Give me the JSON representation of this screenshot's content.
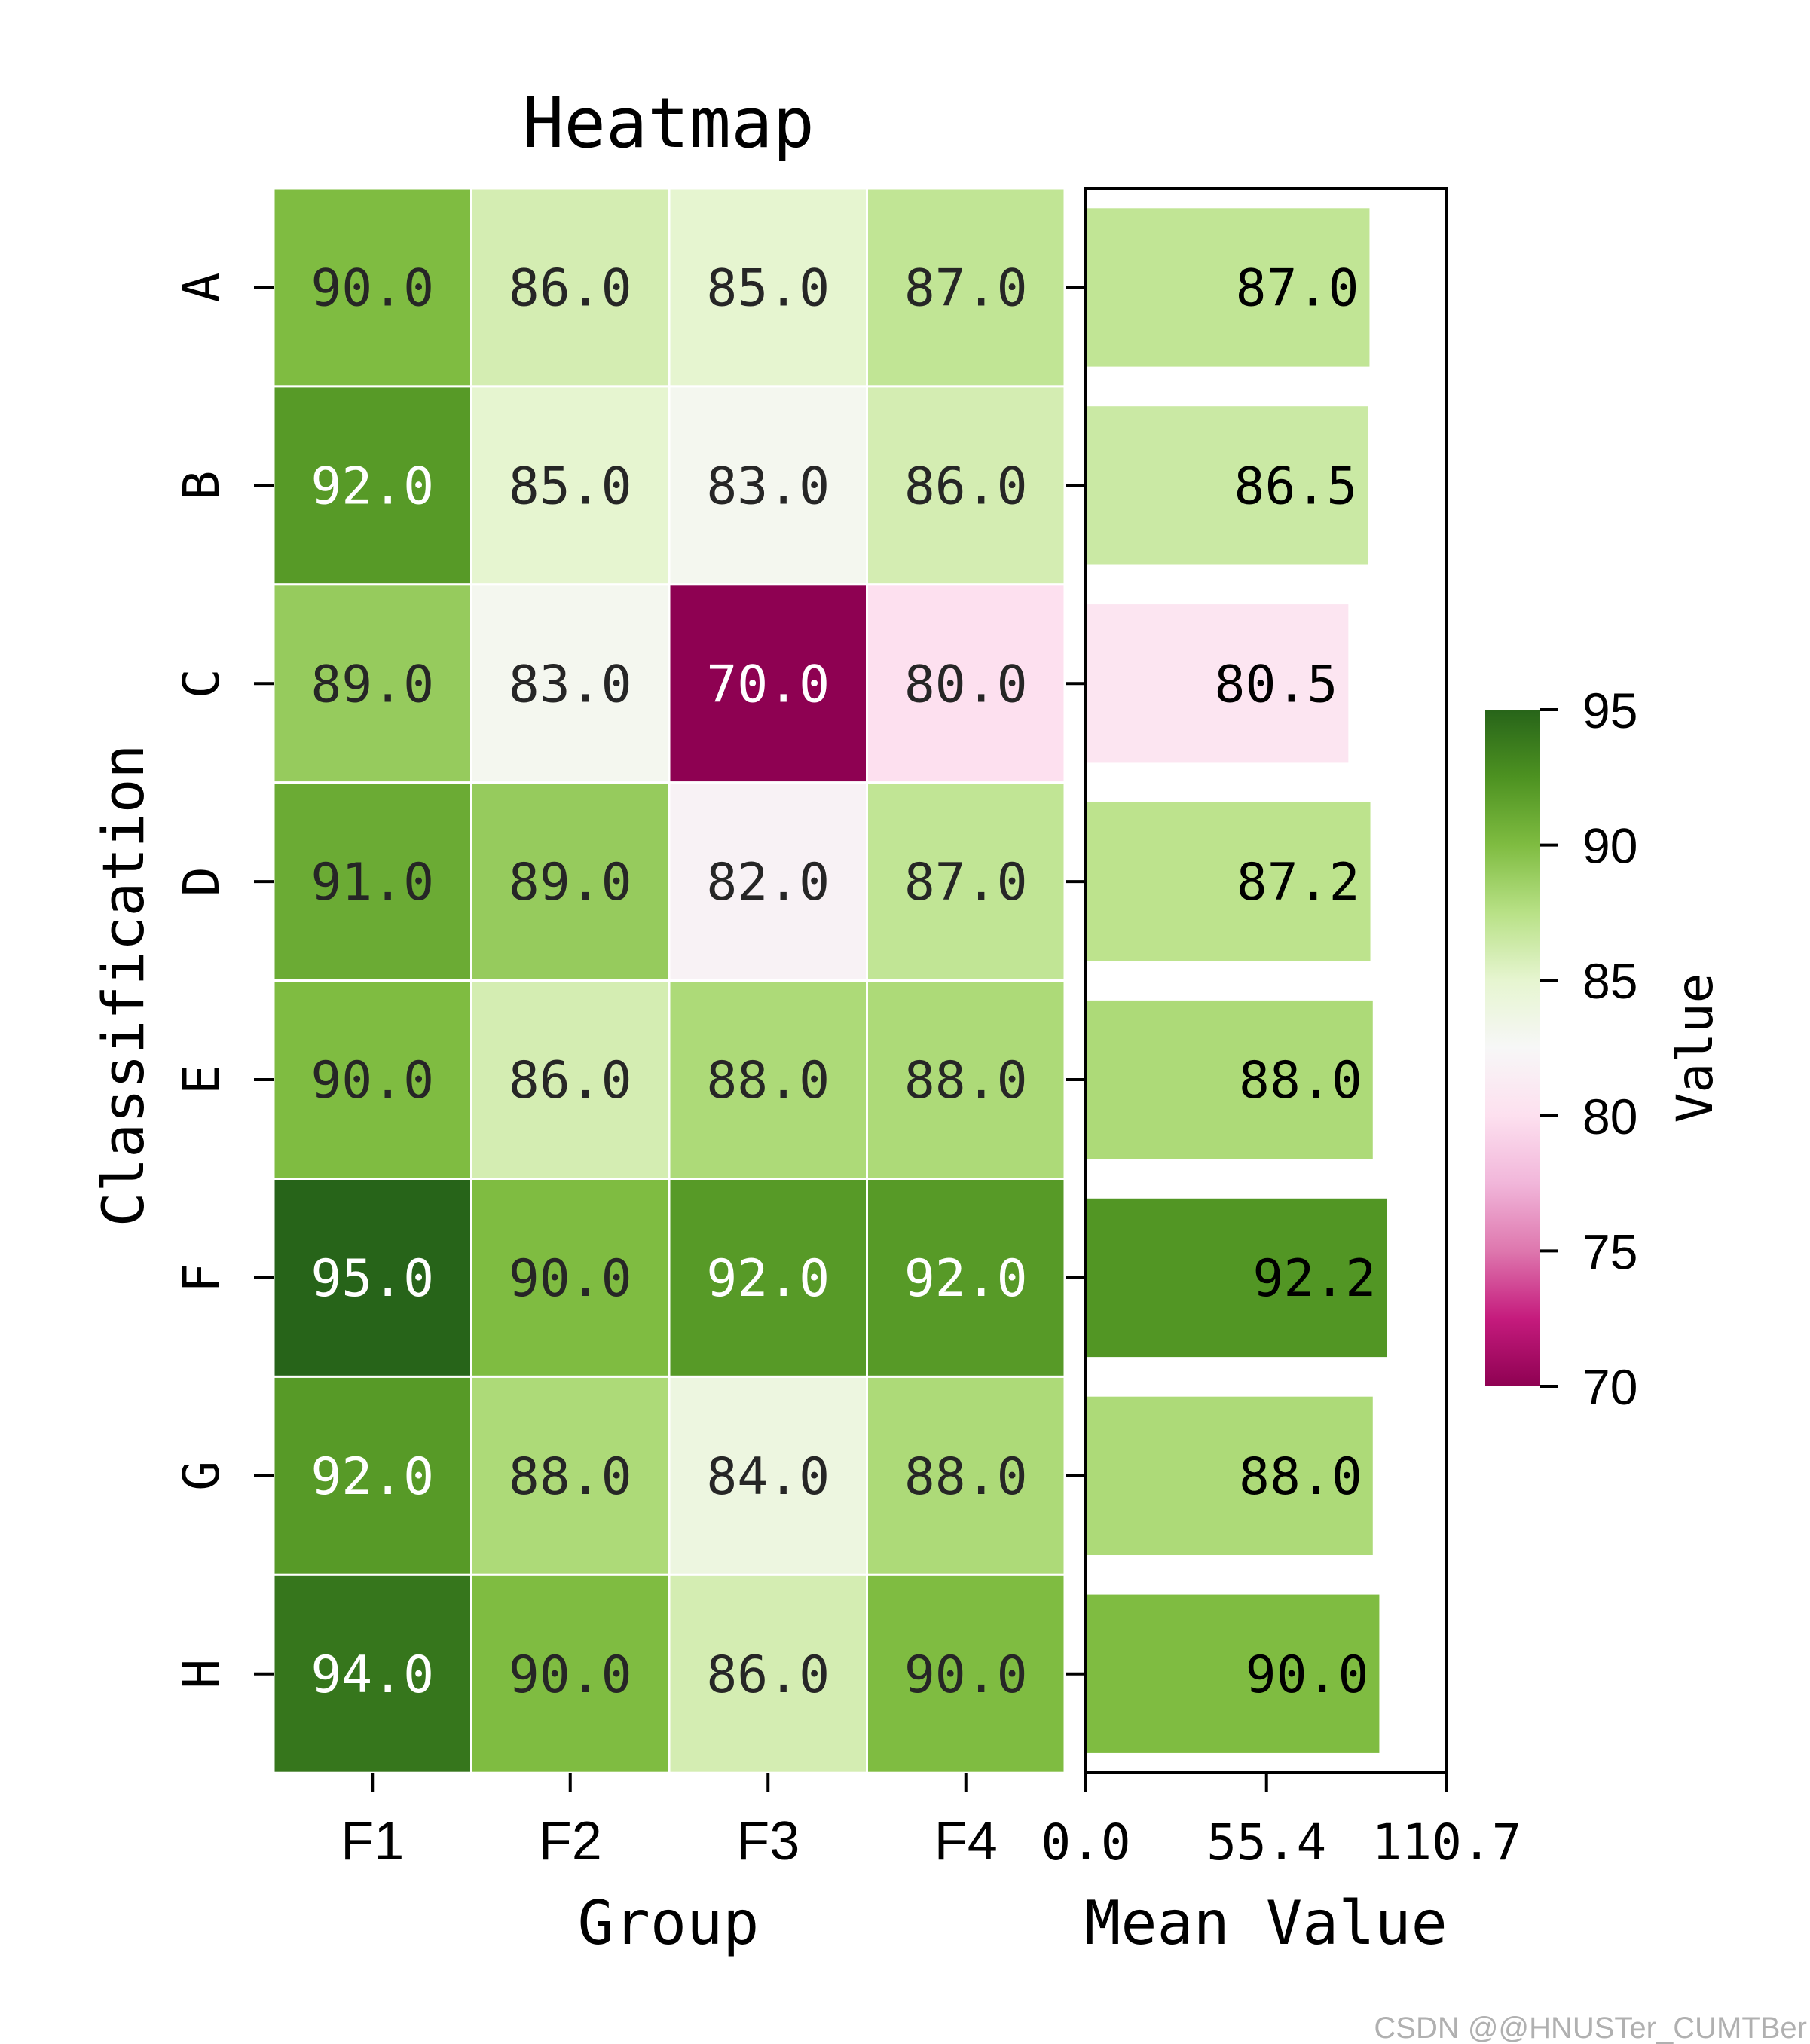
{
  "chart_data": {
    "type": "heatmap",
    "title": "Heatmap",
    "xlabel": "Group",
    "ylabel": "Classification",
    "columns": [
      "F1",
      "F2",
      "F3",
      "F4"
    ],
    "rows": [
      "A",
      "B",
      "C",
      "D",
      "E",
      "F",
      "G",
      "H"
    ],
    "values": [
      [
        90,
        86,
        85,
        87
      ],
      [
        92,
        85,
        83,
        86
      ],
      [
        89,
        83,
        70,
        80
      ],
      [
        91,
        89,
        82,
        87
      ],
      [
        90,
        86,
        88,
        88
      ],
      [
        95,
        90,
        92,
        92
      ],
      [
        92,
        88,
        84,
        88
      ],
      [
        94,
        90,
        86,
        90
      ]
    ],
    "cell_labels": [
      [
        "90.0",
        "86.0",
        "85.0",
        "87.0"
      ],
      [
        "92.0",
        "85.0",
        "83.0",
        "86.0"
      ],
      [
        "89.0",
        "83.0",
        "70.0",
        "80.0"
      ],
      [
        "91.0",
        "89.0",
        "82.0",
        "87.0"
      ],
      [
        "90.0",
        "86.0",
        "88.0",
        "88.0"
      ],
      [
        "95.0",
        "90.0",
        "92.0",
        "92.0"
      ],
      [
        "92.0",
        "88.0",
        "84.0",
        "88.0"
      ],
      [
        "94.0",
        "90.0",
        "86.0",
        "90.0"
      ]
    ],
    "colormap": "PiYG",
    "value_range": [
      70,
      95
    ],
    "colorbar": {
      "label": "Value",
      "ticks": [
        70,
        75,
        80,
        85,
        90,
        95
      ],
      "tick_labels": [
        "70",
        "75",
        "80",
        "85",
        "90",
        "95"
      ],
      "colors": [
        "#8e0152",
        "#c51b7d",
        "#de77ae",
        "#f1b6da",
        "#fde0ef",
        "#f7f7f7",
        "#e6f5d0",
        "#b8e186",
        "#7fbc41",
        "#4d9221",
        "#276419"
      ]
    },
    "bar_chart": {
      "type": "bar",
      "orientation": "horizontal",
      "xlabel": "Mean Value",
      "xlim": [
        0.0,
        110.7
      ],
      "x_ticks": [
        0.0,
        55.4,
        110.7
      ],
      "x_tick_labels": [
        "0.0",
        "55.4",
        "110.7"
      ],
      "categories": [
        "A",
        "B",
        "C",
        "D",
        "E",
        "F",
        "G",
        "H"
      ],
      "values": [
        87.0,
        86.5,
        80.5,
        87.25,
        88.0,
        92.25,
        88.0,
        90.0
      ],
      "value_labels": [
        "87.0",
        "86.5",
        "80.5",
        "87.2",
        "88.0",
        "92.2",
        "88.0",
        "90.0"
      ]
    }
  },
  "watermark": "CSDN @@HNUSTer_CUMTBer"
}
